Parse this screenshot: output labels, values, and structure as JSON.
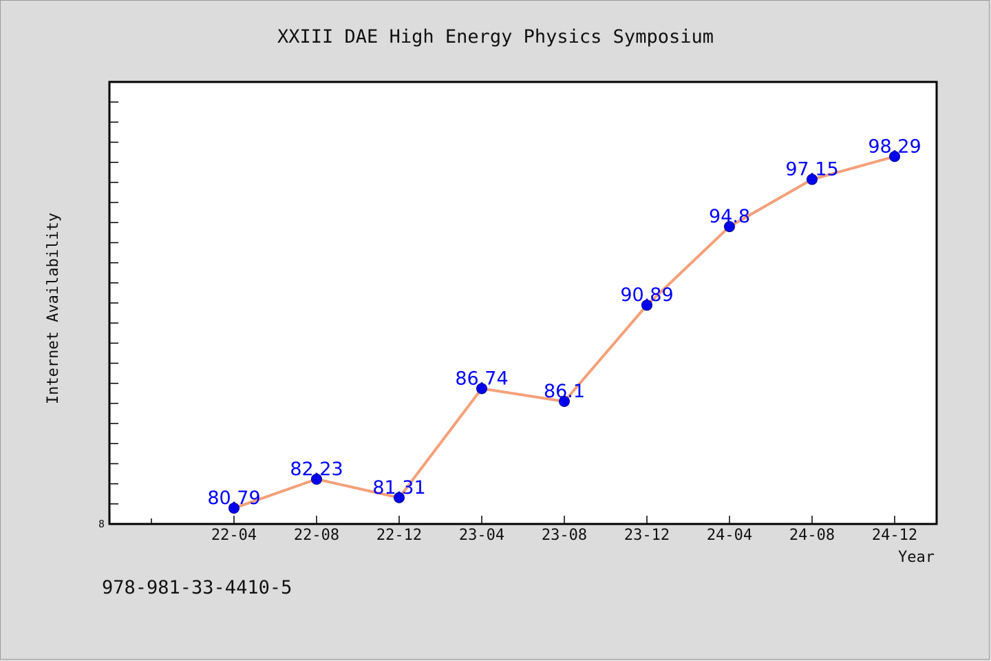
{
  "chart_data": {
    "type": "line",
    "title": "XXIII DAE High Energy Physics Symposium",
    "xlabel": "Year",
    "ylabel": "Internet Availability",
    "categories": [
      "22-04",
      "22-08",
      "22-12",
      "23-04",
      "23-08",
      "23-12",
      "24-04",
      "24-08",
      "24-12"
    ],
    "series": [
      {
        "values": [
          80.79,
          82.23,
          81.31,
          86.74,
          86.1,
          90.89,
          94.8,
          97.15,
          98.29
        ],
        "data_labels": [
          "80.79",
          "82.23",
          "81.31",
          "86.74",
          "86.1",
          "90.89",
          "94.8",
          "97.15",
          "98.29"
        ]
      }
    ],
    "y_tick_label": "8",
    "ylim": [
      80,
      102
    ],
    "grid": false,
    "legend": "none",
    "colors": {
      "line": "#f4a07a",
      "marker": "#0000ee",
      "data_label": "#0000ff",
      "plot_background": "#ffffff",
      "page_background": "#dcdcdc"
    }
  },
  "footer": {
    "isbn": "978-981-33-4410-5"
  }
}
